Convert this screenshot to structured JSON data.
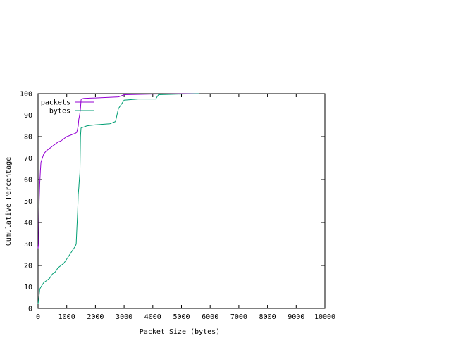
{
  "chart_data": {
    "type": "line",
    "xlabel": "Packet Size (bytes)",
    "ylabel": "Cumulative Percentage",
    "xlim": [
      0,
      10000
    ],
    "ylim": [
      0,
      100
    ],
    "x_ticks": [
      0,
      1000,
      2000,
      3000,
      4000,
      5000,
      6000,
      7000,
      8000,
      9000,
      10000
    ],
    "y_ticks": [
      0,
      10,
      20,
      30,
      40,
      50,
      60,
      70,
      80,
      90,
      100
    ],
    "x_tick_labels": [
      "0",
      "1000",
      "2000",
      "3000",
      "4000",
      "5000",
      "6000",
      "7000",
      "8000",
      "9000",
      "10000"
    ],
    "y_tick_labels": [
      "0",
      "10",
      "20",
      "30",
      "40",
      "50",
      "60",
      "70",
      "80",
      "90",
      "100"
    ],
    "grid": false,
    "legend": "top-left",
    "series": [
      {
        "name": "packets",
        "color": "#9400d3",
        "points": [
          [
            0,
            28
          ],
          [
            20,
            30
          ],
          [
            40,
            50
          ],
          [
            60,
            58
          ],
          [
            80,
            64
          ],
          [
            100,
            68
          ],
          [
            150,
            70
          ],
          [
            200,
            72
          ],
          [
            300,
            73.5
          ],
          [
            400,
            74.5
          ],
          [
            500,
            75.5
          ],
          [
            600,
            76.5
          ],
          [
            700,
            77.5
          ],
          [
            800,
            78
          ],
          [
            900,
            79
          ],
          [
            1000,
            80
          ],
          [
            1100,
            80.5
          ],
          [
            1200,
            81
          ],
          [
            1300,
            81.5
          ],
          [
            1350,
            82
          ],
          [
            1400,
            85
          ],
          [
            1420,
            88
          ],
          [
            1450,
            90
          ],
          [
            1480,
            93
          ],
          [
            1500,
            97
          ],
          [
            1510,
            97.5
          ],
          [
            1600,
            97.8
          ],
          [
            2000,
            98
          ],
          [
            2800,
            98.5
          ],
          [
            2900,
            99
          ],
          [
            3000,
            99.5
          ],
          [
            4000,
            99.8
          ],
          [
            5600,
            100
          ]
        ]
      },
      {
        "name": "bytes",
        "color": "#009e73",
        "points": [
          [
            0,
            2
          ],
          [
            30,
            5
          ],
          [
            60,
            9
          ],
          [
            100,
            10
          ],
          [
            200,
            12
          ],
          [
            300,
            13
          ],
          [
            400,
            14
          ],
          [
            500,
            16
          ],
          [
            600,
            17
          ],
          [
            700,
            19
          ],
          [
            800,
            20
          ],
          [
            900,
            21
          ],
          [
            1000,
            23
          ],
          [
            1100,
            25
          ],
          [
            1200,
            27
          ],
          [
            1300,
            29
          ],
          [
            1330,
            30
          ],
          [
            1350,
            36
          ],
          [
            1380,
            45
          ],
          [
            1400,
            53
          ],
          [
            1420,
            56
          ],
          [
            1440,
            60
          ],
          [
            1460,
            63
          ],
          [
            1480,
            80
          ],
          [
            1500,
            84
          ],
          [
            1700,
            85
          ],
          [
            2000,
            85.5
          ],
          [
            2500,
            86
          ],
          [
            2700,
            87
          ],
          [
            2800,
            93
          ],
          [
            2850,
            94
          ],
          [
            2950,
            96
          ],
          [
            3000,
            97
          ],
          [
            3500,
            97.5
          ],
          [
            4100,
            97.5
          ],
          [
            4200,
            99.5
          ],
          [
            5000,
            99.8
          ],
          [
            5600,
            100
          ]
        ]
      }
    ]
  }
}
